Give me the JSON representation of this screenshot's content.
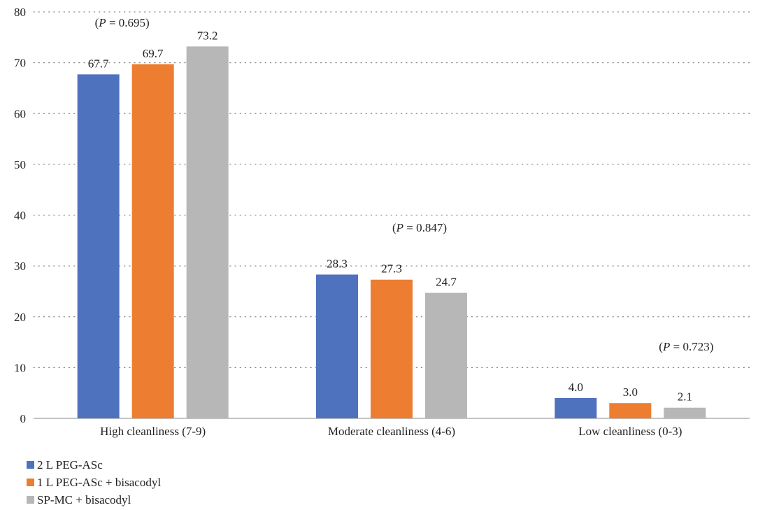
{
  "chart_data": {
    "type": "bar",
    "title": "",
    "xlabel": "",
    "ylabel": "",
    "ylim": [
      0,
      80
    ],
    "yticks": [
      0,
      10,
      20,
      30,
      40,
      50,
      60,
      70,
      80
    ],
    "grid": "horizontal-dotted",
    "legend_position": "bottom-left",
    "categories": [
      "High cleanliness (7-9)",
      "Moderate cleanliness (4-6)",
      "Low cleanliness (0-3)"
    ],
    "series": [
      {
        "name": "2 L PEG-ASc",
        "color": "#4F72BE",
        "values": [
          67.7,
          28.3,
          4.0
        ],
        "labels": [
          "67.7",
          "28.3",
          "4.0"
        ]
      },
      {
        "name": "1 L PEG-ASc + bisacodyl",
        "color": "#ED7D31",
        "values": [
          69.7,
          27.3,
          3.0
        ],
        "labels": [
          "69.7",
          "27.3",
          "3.0"
        ]
      },
      {
        "name": "SP-MC + bisacodyl",
        "color": "#B7B7B7",
        "values": [
          73.2,
          24.7,
          2.1
        ],
        "labels": [
          "73.2",
          "24.7",
          "2.1"
        ]
      }
    ],
    "annotations": [
      {
        "text": "(P = 0.695)",
        "category": 0
      },
      {
        "text": "(P = 0.847)",
        "category": 1
      },
      {
        "text": "(P = 0.723)",
        "category": 2
      }
    ]
  }
}
